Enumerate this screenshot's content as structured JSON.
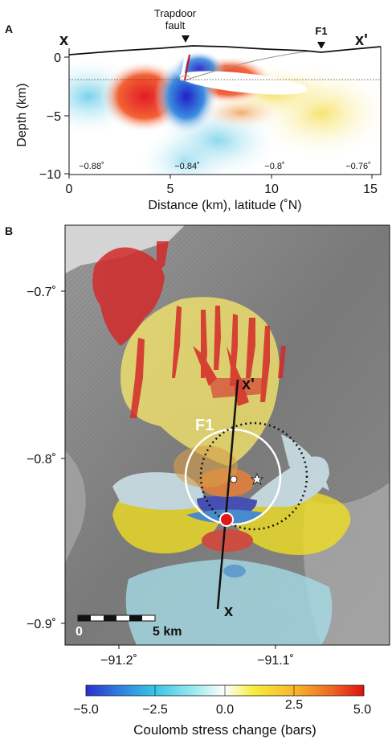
{
  "panelA": {
    "letter": "A",
    "label_x": "x",
    "label_x_prime": "x'",
    "trapdoor_label_line1": "Trapdoor",
    "trapdoor_label_line2": "fault",
    "f1_label": "F1",
    "ylabel": "Depth (km)",
    "xlabel": "Distance (km), latitude (˚N)",
    "yticks": [
      "0",
      "−5",
      "−10"
    ],
    "xticks": [
      "0",
      "5",
      "10",
      "15"
    ],
    "lat_labels": [
      "−0.88˚",
      "−0.84˚",
      "−0.8˚",
      "−0.76˚"
    ]
  },
  "panelB": {
    "letter": "B",
    "yticks": [
      "−0.7˚",
      "−0.8˚",
      "−0.9˚"
    ],
    "xticks": [
      "−91.2˚",
      "−91.1˚"
    ],
    "label_x": "x",
    "label_x_prime": "x'",
    "f1_label": "F1",
    "scale_start": "0",
    "scale_end": "5 km"
  },
  "colorbar": {
    "ticks": [
      "−5.0",
      "−2.5",
      "0.0",
      "2.5",
      "5.0"
    ],
    "label": "Coulomb stress change (bars)",
    "range": [
      -5,
      5
    ]
  },
  "colors": {
    "neg": "#2233cc",
    "mid_neg": "#7fd4e0",
    "zero": "#ffffff",
    "mid_pos": "#f2e43a",
    "pos": "#e41a1c"
  }
}
